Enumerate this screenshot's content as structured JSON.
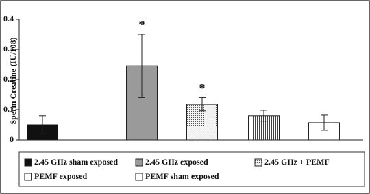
{
  "chart_data": {
    "type": "bar",
    "y_label": "Sperm Creatine (IU/108)",
    "ylim": [
      0,
      0.4
    ],
    "yticks": [
      0,
      0.1,
      0.2,
      0.3,
      0.4
    ],
    "series": [
      {
        "name": "2.45 GHz sham exposed",
        "color": "#111111",
        "values": [
          0.05
        ],
        "errors": [
          0.03
        ]
      },
      {
        "name": "2.45 GHz exposed",
        "color": "#9a9a9a",
        "values": [
          0.245
        ],
        "errors": [
          0.105
        ],
        "annotation": "*"
      },
      {
        "name": "2.45 GHz + PEMF",
        "color": "#e4e4e4",
        "pattern": "dots",
        "values": [
          0.118
        ],
        "errors": [
          0.022
        ],
        "annotation": "*"
      },
      {
        "name": "PEMF exposed",
        "color": "#d0d0d0",
        "pattern": "vertical-lines",
        "values": [
          0.08
        ],
        "errors": [
          0.018
        ]
      },
      {
        "name": "PEMF sham exposed",
        "color": "#ffffff",
        "values": [
          0.057
        ],
        "errors": [
          0.025
        ]
      }
    ]
  }
}
